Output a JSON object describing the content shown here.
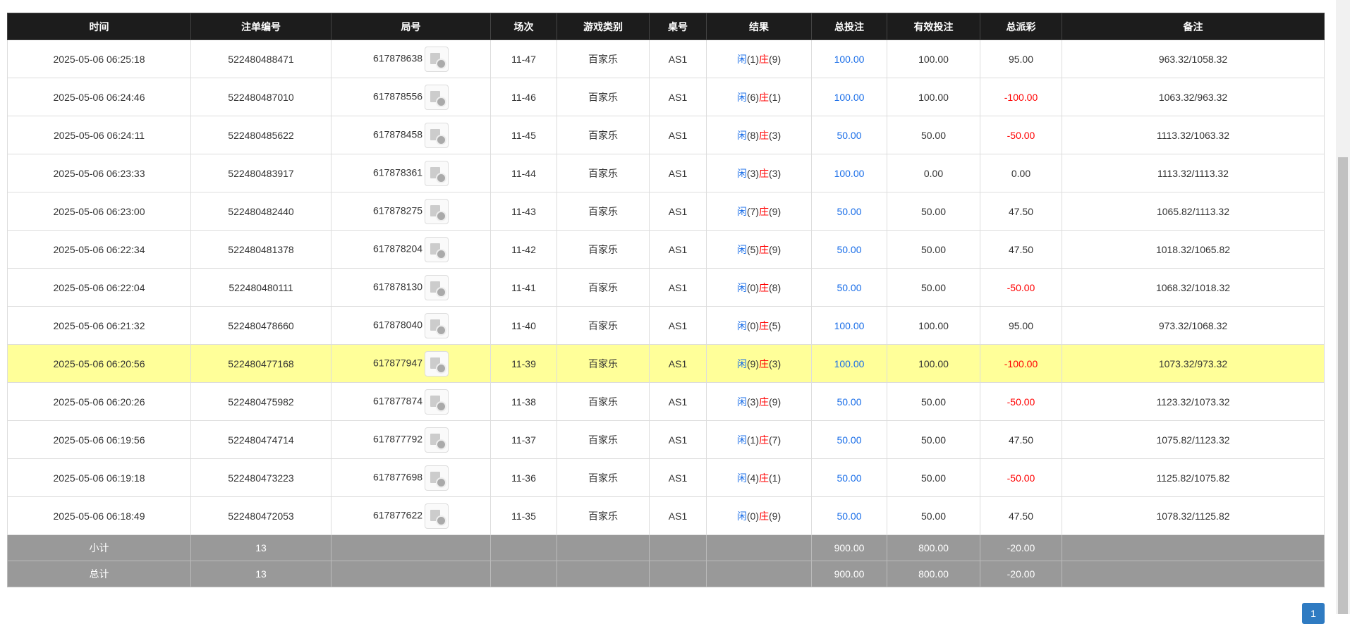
{
  "header": [
    "时间",
    "注单编号",
    "局号",
    "场次",
    "游戏类别",
    "桌号",
    "结果",
    "总投注",
    "有效投注",
    "总派彩",
    "备注"
  ],
  "rows": [
    [
      "2025-05-06 06:25:18",
      "522480488471",
      "617878638",
      "11-47",
      "百家乐",
      "AS1",
      [
        "闲",
        "(1)",
        "庄",
        "(9)"
      ],
      "100.00",
      "100.00",
      "95.00",
      "963.32/1058.32"
    ],
    [
      "2025-05-06 06:24:46",
      "522480487010",
      "617878556",
      "11-46",
      "百家乐",
      "AS1",
      [
        "闲",
        "(6)",
        "庄",
        "(1)"
      ],
      "100.00",
      "100.00",
      "-100.00",
      "1063.32/963.32"
    ],
    [
      "2025-05-06 06:24:11",
      "522480485622",
      "617878458",
      "11-45",
      "百家乐",
      "AS1",
      [
        "闲",
        "(8)",
        "庄",
        "(3)"
      ],
      "50.00",
      "50.00",
      "-50.00",
      "1113.32/1063.32"
    ],
    [
      "2025-05-06 06:23:33",
      "522480483917",
      "617878361",
      "11-44",
      "百家乐",
      "AS1",
      [
        "闲",
        "(3)",
        "庄",
        "(3)"
      ],
      "100.00",
      "0.00",
      "0.00",
      "1113.32/1113.32"
    ],
    [
      "2025-05-06 06:23:00",
      "522480482440",
      "617878275",
      "11-43",
      "百家乐",
      "AS1",
      [
        "闲",
        "(7)",
        "庄",
        "(9)"
      ],
      "50.00",
      "50.00",
      "47.50",
      "1065.82/1113.32"
    ],
    [
      "2025-05-06 06:22:34",
      "522480481378",
      "617878204",
      "11-42",
      "百家乐",
      "AS1",
      [
        "闲",
        "(5)",
        "庄",
        "(9)"
      ],
      "50.00",
      "50.00",
      "47.50",
      "1018.32/1065.82"
    ],
    [
      "2025-05-06 06:22:04",
      "522480480111",
      "617878130",
      "11-41",
      "百家乐",
      "AS1",
      [
        "闲",
        "(0)",
        "庄",
        "(8)"
      ],
      "50.00",
      "50.00",
      "-50.00",
      "1068.32/1018.32"
    ],
    [
      "2025-05-06 06:21:32",
      "522480478660",
      "617878040",
      "11-40",
      "百家乐",
      "AS1",
      [
        "闲",
        "(0)",
        "庄",
        "(5)"
      ],
      "100.00",
      "100.00",
      "95.00",
      "973.32/1068.32"
    ],
    [
      "2025-05-06 06:20:56",
      "522480477168",
      "617877947",
      "11-39",
      "百家乐",
      "AS1",
      [
        "闲",
        "(9)",
        "庄",
        "(3)"
      ],
      "100.00",
      "100.00",
      "-100.00",
      "1073.32/973.32"
    ],
    [
      "2025-05-06 06:20:26",
      "522480475982",
      "617877874",
      "11-38",
      "百家乐",
      "AS1",
      [
        "闲",
        "(3)",
        "庄",
        "(9)"
      ],
      "50.00",
      "50.00",
      "-50.00",
      "1123.32/1073.32"
    ],
    [
      "2025-05-06 06:19:56",
      "522480474714",
      "617877792",
      "11-37",
      "百家乐",
      "AS1",
      [
        "闲",
        "(1)",
        "庄",
        "(7)"
      ],
      "50.00",
      "50.00",
      "47.50",
      "1075.82/1123.32"
    ],
    [
      "2025-05-06 06:19:18",
      "522480473223",
      "617877698",
      "11-36",
      "百家乐",
      "AS1",
      [
        "闲",
        "(4)",
        "庄",
        "(1)"
      ],
      "50.00",
      "50.00",
      "-50.00",
      "1125.82/1075.82"
    ],
    [
      "2025-05-06 06:18:49",
      "522480472053",
      "617877622",
      "11-35",
      "百家乐",
      "AS1",
      [
        "闲",
        "(0)",
        "庄",
        "(9)"
      ],
      "50.00",
      "50.00",
      "47.50",
      "1078.32/1125.82"
    ]
  ],
  "highlight_row": 8,
  "footer": [
    {
      "label": "小计",
      "count": "13",
      "total_bet": "900.00",
      "valid_bet": "800.00",
      "payout": "-20.00"
    },
    {
      "label": "总计",
      "count": "13",
      "total_bet": "900.00",
      "valid_bet": "800.00",
      "payout": "-20.00"
    }
  ],
  "pagination": [
    "1"
  ]
}
